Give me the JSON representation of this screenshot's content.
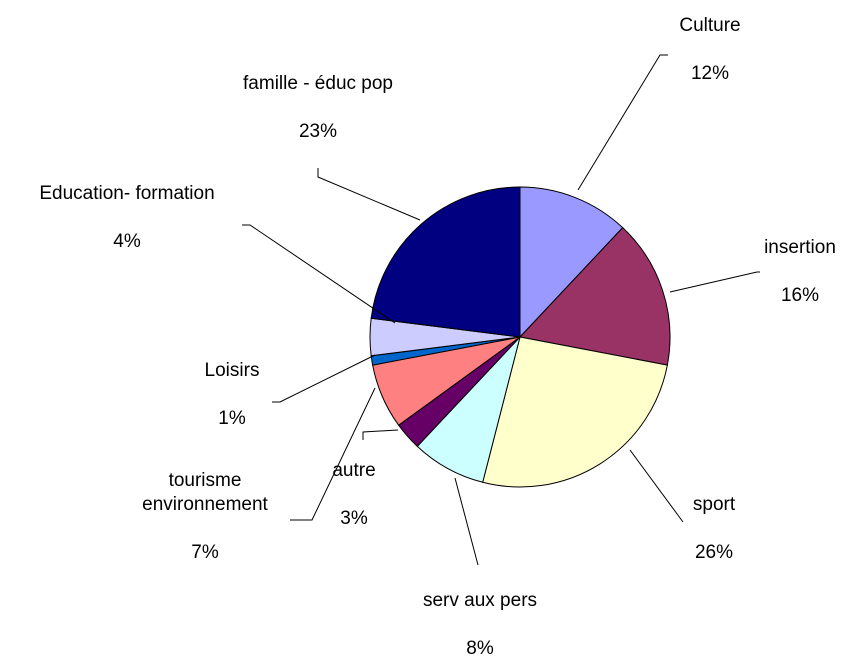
{
  "chart_data": {
    "type": "pie",
    "categories": [
      "Culture",
      "insertion",
      "sport",
      "serv aux pers",
      "autre",
      "tourisme environnement",
      "Loisirs",
      "Education- formation",
      "famille - éduc pop"
    ],
    "values": [
      12,
      16,
      26,
      8,
      3,
      7,
      1,
      4,
      23
    ],
    "value_labels": [
      "12%",
      "16%",
      "26%",
      "8%",
      "3%",
      "7%",
      "1%",
      "4%",
      "23%"
    ],
    "colors": [
      "#9999ff",
      "#993366",
      "#ffffcc",
      "#ccffff",
      "#660066",
      "#ff8080",
      "#0066cc",
      "#ccccff",
      "#000080"
    ]
  }
}
